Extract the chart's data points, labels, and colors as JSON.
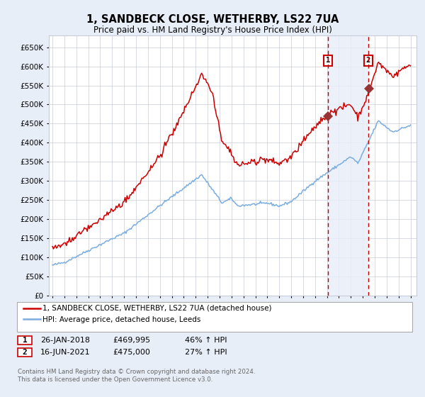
{
  "title": "1, SANDBECK CLOSE, WETHERBY, LS22 7UA",
  "subtitle": "Price paid vs. HM Land Registry's House Price Index (HPI)",
  "legend_line1": "1, SANDBECK CLOSE, WETHERBY, LS22 7UA (detached house)",
  "legend_line2": "HPI: Average price, detached house, Leeds",
  "sale1_date": "26-JAN-2018",
  "sale1_price": 469995,
  "sale1_pct": "46% ↑ HPI",
  "sale2_date": "16-JUN-2021",
  "sale2_price": 475000,
  "sale2_pct": "27% ↑ HPI",
  "footer": "Contains HM Land Registry data © Crown copyright and database right 2024.\nThis data is licensed under the Open Government Licence v3.0.",
  "red_color": "#cc0000",
  "blue_color": "#7aade0",
  "background_color": "#e8eef8",
  "plot_bg": "#ffffff",
  "grid_color": "#c8ccd8",
  "marker_color": "#993333",
  "vline1_year": 2018.07,
  "vline2_year": 2021.46,
  "ylim_min": 0,
  "ylim_max": 680000,
  "sale1_year": 2018.07,
  "sale2_year": 2021.46,
  "sale1_hpi_price": 321000,
  "sale2_hpi_price": 374000
}
